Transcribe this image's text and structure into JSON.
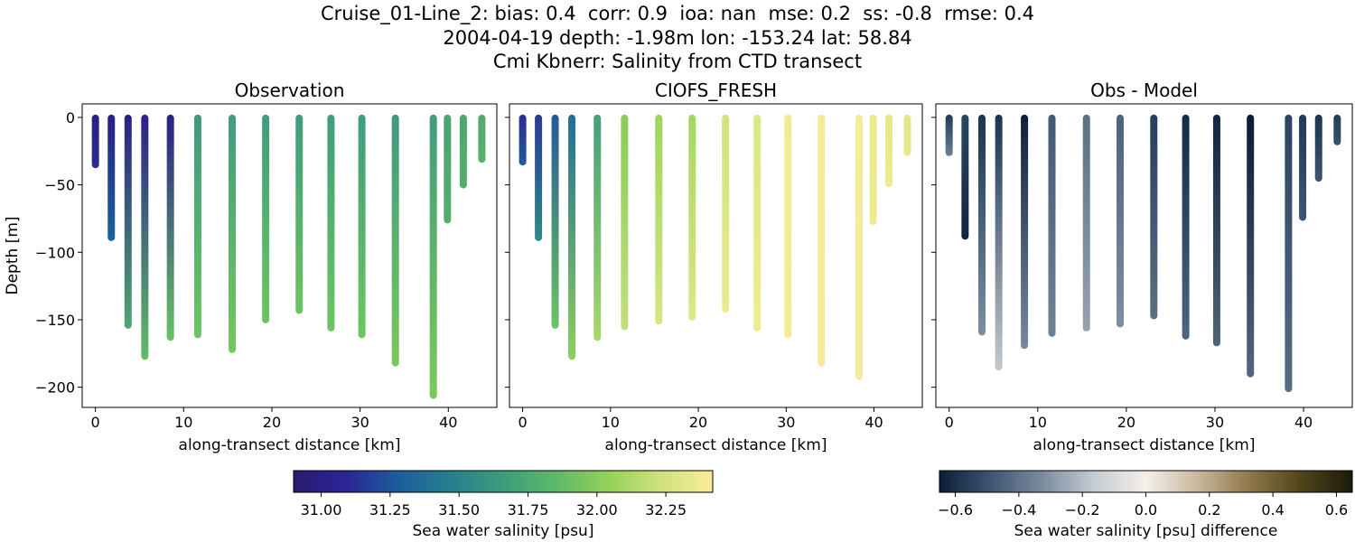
{
  "title": {
    "line1": "Cruise_01-Line_2: bias: 0.4  corr: 0.9  ioa: nan  mse: 0.2  ss: -0.8  rmse: 0.4",
    "line2": "2004-04-19 depth: -1.98m lon: -153.24 lat: 58.84",
    "line3": "Cmi Kbnerr: Salinity from CTD transect"
  },
  "chart_data": [
    {
      "type": "scatter",
      "title": "Observation",
      "xlabel": "along-transect distance [km]",
      "ylabel": "Depth [m]",
      "xlim": [
        -1.5,
        45.5
      ],
      "ylim": [
        -215,
        10
      ],
      "xticks": [
        0,
        10,
        20,
        30,
        40
      ],
      "yticks": [
        0,
        -50,
        -100,
        -150,
        -200
      ],
      "colormap": "haline",
      "columns": [
        {
          "x": 0.0,
          "bottom": -35,
          "top_color": "#2a1f86",
          "bottom_color": "#2a2d8f"
        },
        {
          "x": 1.8,
          "bottom": -89,
          "top_color": "#2a1f86",
          "bottom_color": "#19659a"
        },
        {
          "x": 3.7,
          "bottom": -154,
          "top_color": "#2a1f86",
          "bottom_color": "#4fa870"
        },
        {
          "x": 5.6,
          "bottom": -177,
          "top_color": "#2a1f86",
          "bottom_color": "#62bd67"
        },
        {
          "x": 8.5,
          "bottom": -163,
          "top_color": "#2a1f86",
          "bottom_color": "#67c365"
        },
        {
          "x": 11.6,
          "bottom": -161,
          "top_color": "#3d9a7e",
          "bottom_color": "#6cc560"
        },
        {
          "x": 15.5,
          "bottom": -172,
          "top_color": "#3f9d7c",
          "bottom_color": "#74c85d"
        },
        {
          "x": 19.3,
          "bottom": -150,
          "top_color": "#3f9d7c",
          "bottom_color": "#6cc560"
        },
        {
          "x": 23.1,
          "bottom": -143,
          "top_color": "#3f9d7c",
          "bottom_color": "#6bc462"
        },
        {
          "x": 26.7,
          "bottom": -156,
          "top_color": "#3f9d7c",
          "bottom_color": "#6cc560"
        },
        {
          "x": 30.2,
          "bottom": -161,
          "top_color": "#3f9d7c",
          "bottom_color": "#6ec661"
        },
        {
          "x": 34.0,
          "bottom": -182,
          "top_color": "#3d9a7e",
          "bottom_color": "#78c95b"
        },
        {
          "x": 38.3,
          "bottom": -206,
          "top_color": "#3f9d7c",
          "bottom_color": "#7cca59"
        },
        {
          "x": 39.9,
          "bottom": -76,
          "top_color": "#4aa474",
          "bottom_color": "#53ae6e"
        },
        {
          "x": 41.7,
          "bottom": -50,
          "top_color": "#4ea671",
          "bottom_color": "#55ae6c"
        },
        {
          "x": 43.8,
          "bottom": -31,
          "top_color": "#52aa6f",
          "bottom_color": "#57b06c"
        }
      ]
    },
    {
      "type": "scatter",
      "title": "CIOFS_FRESH",
      "xlabel": "along-transect distance [km]",
      "ylabel": "",
      "xlim": [
        -1.5,
        45.5
      ],
      "ylim": [
        -215,
        10
      ],
      "xticks": [
        0,
        10,
        20,
        30,
        40
      ],
      "yticks": [
        0,
        -50,
        -100,
        -150,
        -200
      ],
      "colormap": "haline",
      "columns": [
        {
          "x": 0.0,
          "bottom": -33,
          "top_color": "#2a2d8f",
          "bottom_color": "#1b5f98"
        },
        {
          "x": 1.8,
          "bottom": -89,
          "top_color": "#2a3a93",
          "bottom_color": "#2f8b86"
        },
        {
          "x": 3.7,
          "bottom": -154,
          "top_color": "#225a96",
          "bottom_color": "#6dc562"
        },
        {
          "x": 5.6,
          "bottom": -177,
          "top_color": "#1f6e96",
          "bottom_color": "#8fd05a"
        },
        {
          "x": 8.5,
          "bottom": -163,
          "top_color": "#43a07a",
          "bottom_color": "#a8d86a"
        },
        {
          "x": 11.6,
          "bottom": -155,
          "top_color": "#86cd58",
          "bottom_color": "#c2e07a"
        },
        {
          "x": 15.5,
          "bottom": -151,
          "top_color": "#9ed45c",
          "bottom_color": "#d5e685"
        },
        {
          "x": 19.3,
          "bottom": -148,
          "top_color": "#a6d660",
          "bottom_color": "#dde889"
        },
        {
          "x": 23.1,
          "bottom": -142,
          "top_color": "#cfe37c",
          "bottom_color": "#eaeb8f"
        },
        {
          "x": 26.7,
          "bottom": -156,
          "top_color": "#d9e785",
          "bottom_color": "#eeec92"
        },
        {
          "x": 30.2,
          "bottom": -161,
          "top_color": "#eeec92",
          "bottom_color": "#f3eb95"
        },
        {
          "x": 34.0,
          "bottom": -182,
          "top_color": "#f2ec95",
          "bottom_color": "#f7ea99"
        },
        {
          "x": 38.3,
          "bottom": -192,
          "top_color": "#f4ec96",
          "bottom_color": "#f7e99a"
        },
        {
          "x": 39.9,
          "bottom": -77,
          "top_color": "#e9ea8e",
          "bottom_color": "#eeeb91"
        },
        {
          "x": 41.7,
          "bottom": -49,
          "top_color": "#e6e98c",
          "bottom_color": "#ebea8f"
        },
        {
          "x": 43.8,
          "bottom": -26,
          "top_color": "#e2e88a",
          "bottom_color": "#e6e98c"
        }
      ]
    },
    {
      "type": "scatter",
      "title": "Obs - Model",
      "xlabel": "along-transect distance [km]",
      "ylabel": "",
      "xlim": [
        -1.5,
        45.5
      ],
      "ylim": [
        -215,
        10
      ],
      "xticks": [
        0,
        10,
        20,
        30,
        40
      ],
      "yticks": [
        0,
        -50,
        -100,
        -150,
        -200
      ],
      "colormap": "diff",
      "columns": [
        {
          "x": 0.0,
          "bottom": -26,
          "top_color": "#213d5b",
          "bottom_color": "#6a7f93"
        },
        {
          "x": 1.8,
          "bottom": -88,
          "top_color": "#2b4763",
          "bottom_color": "#11253f"
        },
        {
          "x": 3.7,
          "bottom": -159,
          "top_color": "#1a3452",
          "bottom_color": "#7d8fa1"
        },
        {
          "x": 5.6,
          "bottom": -185,
          "top_color": "#1a3452",
          "bottom_color": "#c3c9cf"
        },
        {
          "x": 8.5,
          "bottom": -169,
          "top_color": "#0d2038",
          "bottom_color": "#788a9c"
        },
        {
          "x": 11.6,
          "bottom": -160,
          "top_color": "#415a74",
          "bottom_color": "#6f8396"
        },
        {
          "x": 15.5,
          "bottom": -156,
          "top_color": "#5a6f85",
          "bottom_color": "#95a3b1"
        },
        {
          "x": 19.3,
          "bottom": -153,
          "top_color": "#4d637b",
          "bottom_color": "#7d8fa1"
        },
        {
          "x": 23.1,
          "bottom": -147,
          "top_color": "#243f5d",
          "bottom_color": "#5b7086"
        },
        {
          "x": 26.7,
          "bottom": -162,
          "top_color": "#142b47",
          "bottom_color": "#4f657c"
        },
        {
          "x": 30.2,
          "bottom": -167,
          "top_color": "#0f2540",
          "bottom_color": "#4d637a"
        },
        {
          "x": 34.0,
          "bottom": -190,
          "top_color": "#091c33",
          "bottom_color": "#52677e"
        },
        {
          "x": 38.3,
          "bottom": -201,
          "top_color": "#2a4461",
          "bottom_color": "#586c82"
        },
        {
          "x": 39.9,
          "bottom": -74,
          "top_color": "#1e3956",
          "bottom_color": "#3d5570"
        },
        {
          "x": 41.7,
          "bottom": -45,
          "top_color": "#1a3452",
          "bottom_color": "#3c5470"
        },
        {
          "x": 43.8,
          "bottom": -18,
          "top_color": "#203a58",
          "bottom_color": "#3a526d"
        }
      ]
    }
  ],
  "colorbars": [
    {
      "label": "Sea water salinity [psu]",
      "vmin": 30.9,
      "vmax": 32.42,
      "ticks": [
        "31.00",
        "31.25",
        "31.50",
        "31.75",
        "32.00",
        "32.25"
      ],
      "tick_values": [
        31.0,
        31.25,
        31.5,
        31.75,
        32.0,
        32.25
      ],
      "stops": [
        "#291a6e",
        "#2b2598",
        "#1d5d9a",
        "#267f8e",
        "#3c9c7c",
        "#5db96a",
        "#94d05a",
        "#cfe27c",
        "#f9ec9a"
      ]
    },
    {
      "label": "Sea water salinity [psu] difference",
      "vmin": -0.65,
      "vmax": 0.65,
      "ticks": [
        "−0.6",
        "−0.4",
        "−0.2",
        "0.0",
        "0.2",
        "0.4",
        "0.6"
      ],
      "tick_values": [
        -0.6,
        -0.4,
        -0.2,
        0.0,
        0.2,
        0.4,
        0.6
      ],
      "stops": [
        "#0b1e36",
        "#3e5672",
        "#7b8c9f",
        "#c5ccd3",
        "#f4efea",
        "#c9b89c",
        "#8f7848",
        "#51451c",
        "#1a1a0b"
      ]
    }
  ]
}
